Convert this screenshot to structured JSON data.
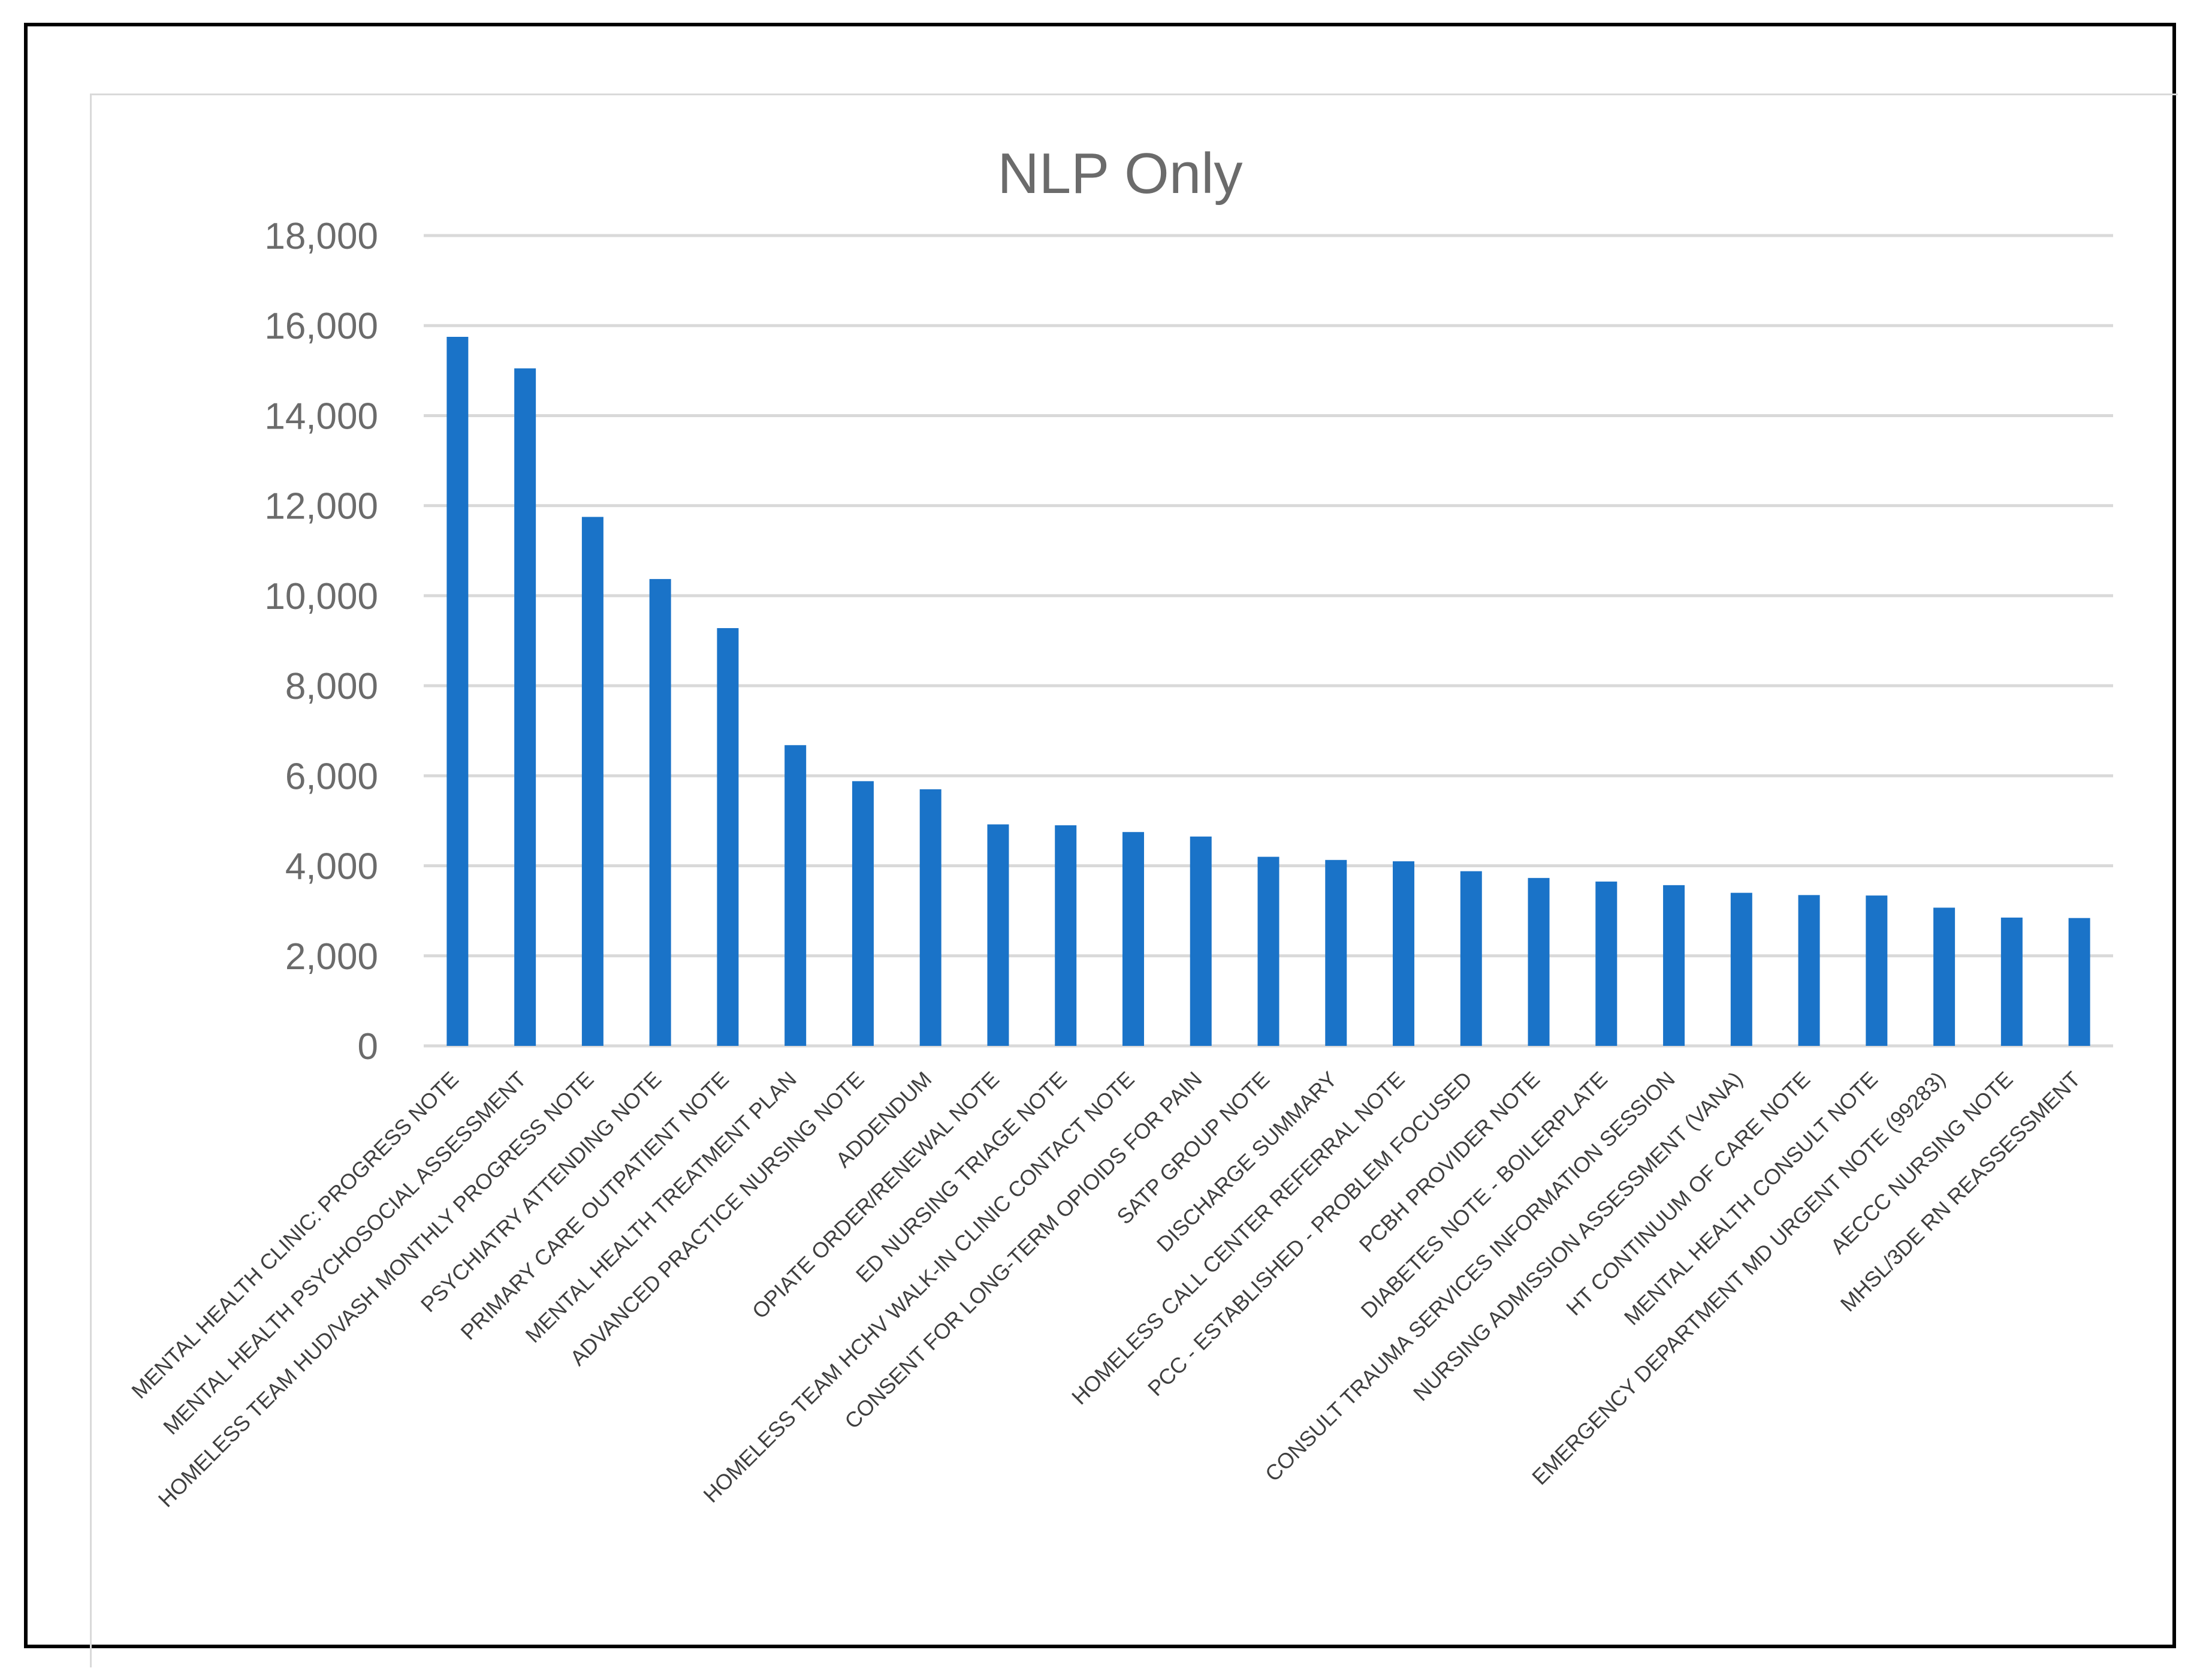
{
  "chart_data": {
    "type": "bar",
    "title": "NLP Only",
    "xlabel": "",
    "ylabel": "",
    "ylim": [
      0,
      18000
    ],
    "yticks": [
      0,
      2000,
      4000,
      6000,
      8000,
      10000,
      12000,
      14000,
      16000,
      18000
    ],
    "ytick_labels": [
      "0",
      "2,000",
      "4,000",
      "6,000",
      "8,000",
      "10,000",
      "12,000",
      "14,000",
      "16,000",
      "18,000"
    ],
    "grid": true,
    "legend": "none",
    "bar_color": "#1a73c8",
    "categories": [
      "MENTAL HEALTH CLINIC: PROGRESS NOTE",
      "MENTAL HEALTH PSYCHOSOCIAL ASSESSMENT",
      "HOMELESS TEAM HUD/VASH MONTHLY PROGRESS NOTE",
      "PSYCHIATRY ATTENDING NOTE",
      "PRIMARY CARE OUTPATIENT NOTE",
      "MENTAL HEALTH TREATMENT PLAN",
      "ADVANCED PRACTICE NURSING NOTE",
      "ADDENDUM",
      "OPIATE ORDER/RENEWAL NOTE",
      "ED NURSING TRIAGE NOTE",
      "HOMELESS TEAM HCHV WALK-IN CLINIC CONTACT NOTE",
      "CONSENT FOR LONG-TERM OPIOIDS FOR PAIN",
      "SATP GROUP NOTE",
      "DISCHARGE SUMMARY",
      "HOMELESS CALL CENTER REFERRAL NOTE",
      "PCC - ESTABLISHED - PROBLEM FOCUSED",
      "PCBH PROVIDER NOTE",
      "DIABETES NOTE - BOILERPLATE",
      "CONSULT TRAUMA SERVICES INFORMATION SESSION",
      "NURSING ADMISSION ASSESSMENT (VANA)",
      "HT CONTINUUM OF CARE NOTE",
      "MENTAL HEALTH CONSULT NOTE",
      "EMERGENCY DEPARTMENT MD URGENT NOTE (99283)",
      "AECCC NURSING NOTE",
      "MHSL/3DE RN REASSESSMENT"
    ],
    "values": [
      15750,
      15050,
      11750,
      10370,
      9280,
      6680,
      5880,
      5700,
      4920,
      4900,
      4750,
      4650,
      4200,
      4130,
      4100,
      3880,
      3730,
      3650,
      3570,
      3400,
      3350,
      3340,
      3070,
      2850,
      2840
    ]
  }
}
